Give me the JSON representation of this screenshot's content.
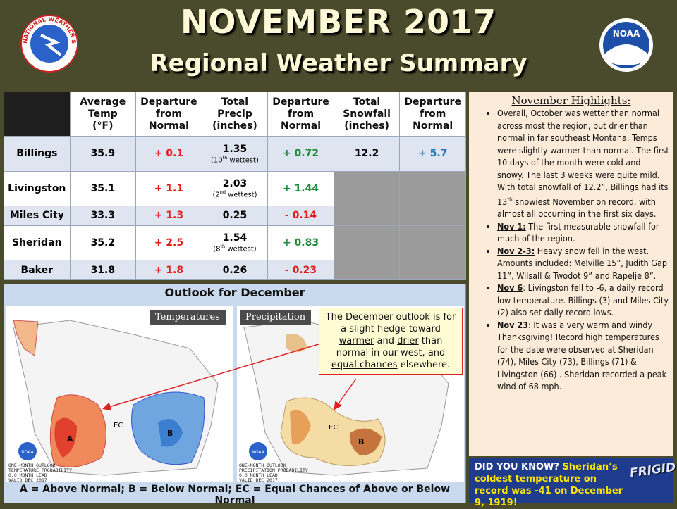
{
  "header": {
    "title": "NOVEMBER 2017",
    "subtitle": "Regional Weather Summary",
    "left_logo": "NATIONAL WEATHER SERVICE",
    "right_logo": "NOAA"
  },
  "table": {
    "columns": [
      "Average\nTemp\n(°F)",
      "Departure\nfrom\nNormal",
      "Total\nPrecip\n(inches)",
      "Departure\nfrom\nNormal",
      "Total\nSnowfall\n(inches)",
      "Departure\nfrom\nNormal"
    ],
    "rows": [
      [
        "Billings",
        "35.9",
        "+ 0.1",
        {
          "value": "1.35",
          "note": [
            {
              "t": "(10"
            },
            {
              "t": "th",
              "s": "sup"
            },
            {
              "t": " wettest)"
            }
          ]
        },
        "+ 0.72",
        "12.2",
        "+ 5.7"
      ],
      [
        "Livingston",
        "35.1",
        "+ 1.1",
        {
          "value": "2.03",
          "note": [
            {
              "t": "(2"
            },
            {
              "t": "nd",
              "s": "sup"
            },
            {
              "t": " wettest)"
            }
          ]
        },
        "+ 1.44"
      ],
      [
        "Miles City",
        "33.3",
        "+ 1.3",
        "0.25",
        "- 0.14"
      ],
      [
        "Sheridan",
        "35.2",
        "+ 2.5",
        {
          "value": "1.54",
          "note": [
            {
              "t": "(8"
            },
            {
              "t": "th",
              "s": "sup"
            },
            {
              "t": " wettest)"
            }
          ]
        },
        "+ 0.83"
      ],
      [
        "Baker",
        "31.8",
        "+ 1.8",
        "0.26",
        "- 0.23"
      ]
    ]
  },
  "outlook": {
    "title": "Outlook for December",
    "tabs": [
      "Temperatures",
      "Precipitation"
    ],
    "callout": [
      {
        "t": "The December outlook is for a slight hedge toward "
      },
      {
        "t": "warmer",
        "s": "u"
      },
      {
        "t": " and "
      },
      {
        "t": "drier",
        "s": "u"
      },
      {
        "t": " than normal in our west, and "
      },
      {
        "t": "equal chances",
        "s": "u"
      },
      {
        "t": " elsewhere."
      }
    ],
    "temp_caption": "ONE-MONTH OUTLOOK\nTEMPERATURE PROBABILITY\n0.0 MONTH LEAD\nVALID DEC 2017",
    "precip_caption": "ONE-MONTH OUTLOOK\nPRECIPITATION PROBABILITY\n0.0 MONTH LEAD\nVALID DEC 2017",
    "map_labels": {
      "a": "A",
      "b": "B",
      "ec": "EC",
      "noaa": "NOAA"
    },
    "legend": "A = Above Normal;  B = Below Normal;  EC = Equal Chances of Above or Below Normal"
  },
  "highlights": {
    "title": "November Highlights:",
    "items": [
      [
        {
          "t": "Overall, October was wetter than normal across most the region, but drier than normal in far southeast Montana. Temps were slightly warmer than normal. The first 10 days of the month were cold and snowy. The last 3 weeks were quite mild. With total snowfall of 12.2”, Billings had its 13"
        },
        {
          "t": "th",
          "s": "sup"
        },
        {
          "t": " snowiest November on record, with almost all occurring in the first six days."
        }
      ],
      [
        {
          "t": "Nov 1:",
          "s": "bu"
        },
        {
          "t": "  The first measurable snowfall for much of the region."
        }
      ],
      [
        {
          "t": "Nov 2-3:",
          "s": "bu"
        },
        {
          "t": "  Heavy snow fell in the west. Amounts included: Melville 15”, Judith Gap 11”, Wilsall & Twodot 9” and Rapelje 8”."
        }
      ],
      [
        {
          "t": "Nov 6",
          "s": "bu"
        },
        {
          "t": ": Livingston fell to -6, a daily record low temperature. Billings (3) and Miles City (2) also set daily record lows."
        }
      ],
      [
        {
          "t": "Nov 23",
          "s": "bu"
        },
        {
          "t": ": It was a very warm and windy Thanksgiving! Record high temperatures for the date were observed at Sheridan (74), Miles City (73), Billings (71) & Livingston (66) .  Sheridan recorded a peak wind of 68 mph."
        }
      ]
    ]
  },
  "did_you_know": {
    "text": [
      {
        "t": "DID YOU KNOW?",
        "s": "b"
      },
      {
        "t": " Sheridan’s coldest temperature on record was -41 on December 9, 1919!"
      }
    ],
    "badge": "FRIGID"
  }
}
